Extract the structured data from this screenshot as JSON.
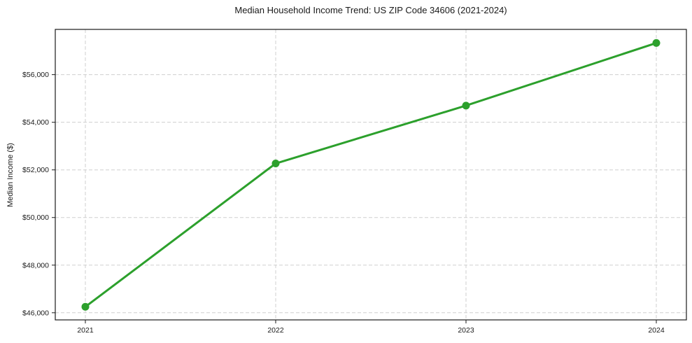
{
  "chart_data": {
    "type": "line",
    "title": "Median Household Income Trend: US ZIP Code 34606 (2021-2024)",
    "ylabel": "Median Income ($)",
    "xlabel": "",
    "categories": [
      "2021",
      "2022",
      "2023",
      "2024"
    ],
    "series": [
      {
        "name": "Median Household Income",
        "values": [
          46250,
          52270,
          54700,
          57330
        ],
        "color": "#2ca02c",
        "marker": "circle"
      }
    ],
    "ylim": [
      45700,
      57900
    ],
    "yticks": [
      46000,
      48000,
      50000,
      52000,
      54000,
      56000
    ],
    "ytick_labels": [
      "$46,000",
      "$48,000",
      "$50,000",
      "$52,000",
      "$54,000",
      "$56,000"
    ],
    "grid": true,
    "grid_style": "dashed",
    "legend": "none",
    "colors": {
      "line": "#2ca02c",
      "grid": "#cfcfcf",
      "spine": "#1a1a1a",
      "text": "#1a1a1a",
      "background": "#ffffff"
    }
  }
}
